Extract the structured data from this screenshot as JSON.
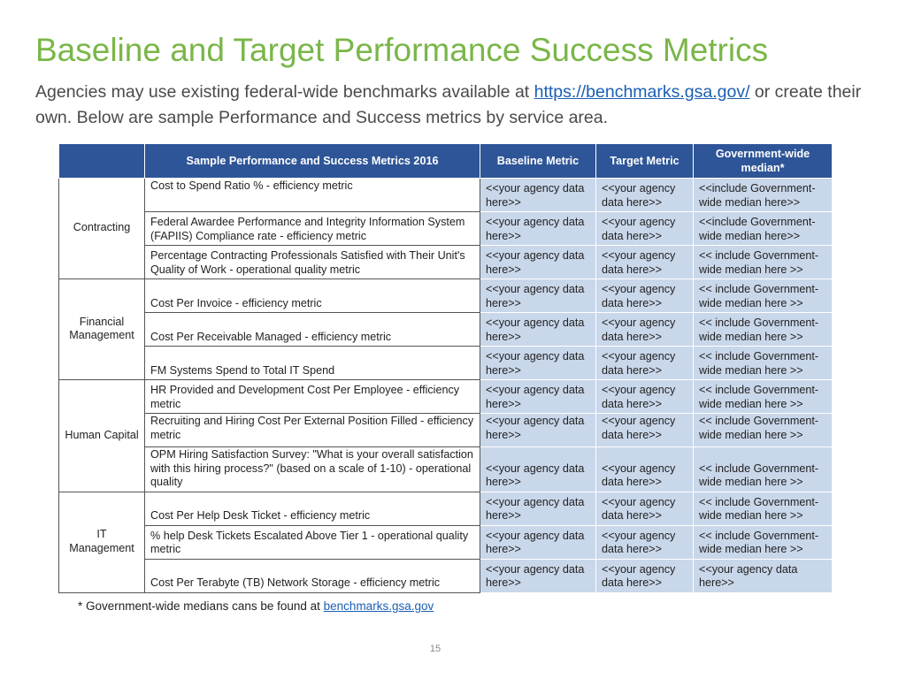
{
  "title": "Baseline and Target Performance Success Metrics",
  "subtitle": {
    "before": "Agencies may use existing federal-wide benchmarks available at ",
    "link": "https://benchmarks.gsa.gov/",
    "after": " or create their own. Below are sample Performance and Success metrics by service area."
  },
  "table": {
    "headers": [
      "",
      "Sample Performance and Success Metrics 2016",
      "Baseline Metric",
      "Target Metric",
      "Government-wide median*"
    ],
    "rows": [
      {
        "area": "Contracting",
        "span": 3,
        "metric": "Cost to Spend Ratio % - efficiency metric",
        "metric_top": true,
        "baseline": "<<your agency data here>>",
        "target": "<<your agency data here>>",
        "median": "<<include Government-wide median  here>>"
      },
      {
        "metric": "Federal Awardee Performance and Integrity Information System (FAPIIS) Compliance rate - efficiency metric",
        "baseline": "<<your agency data here>>",
        "target": "<<your agency data here>>",
        "median": "<<include Government-wide median here>>"
      },
      {
        "metric": "Percentage Contracting Professionals Satisfied with Their Unit's Quality of Work - operational quality metric",
        "baseline": "<<your agency data here>>",
        "target": "<<your agency data here>>",
        "median": "<< include Government-wide median here >>"
      },
      {
        "area": "Financial Management",
        "span": 3,
        "metric": "Cost Per Invoice - efficiency metric",
        "baseline": "<<your agency data here>>",
        "target": "<<your agency data here>>",
        "median": "<< include Government-wide median here >>"
      },
      {
        "metric": "Cost Per Receivable Managed - efficiency metric",
        "baseline": "<<your agency data here>>",
        "target": "<<your agency data here>>",
        "median": "<< include Government-wide median here >>"
      },
      {
        "metric": "FM Systems Spend to Total IT Spend",
        "baseline": "<<your agency data here>>",
        "target": "<<your agency data here>>",
        "median": "<< include Government-wide median here >>"
      },
      {
        "area": "Human Capital",
        "span": 3,
        "metric": "HR Provided and Development Cost Per Employee - efficiency metric",
        "baseline": "<<your agency data here>>",
        "target": "<<your agency data here>>",
        "median": "<< include Government-wide median here >>"
      },
      {
        "metric": "Recruiting and Hiring Cost Per External Position Filled - efficiency metric",
        "metric_top": true,
        "baseline": "<<your agency data here>>",
        "target": "<<your agency data here>>",
        "median": "<< include Government-wide median here >>",
        "values_top": true
      },
      {
        "metric": "OPM Hiring Satisfaction Survey: \"What is your overall satisfaction with this hiring process?\" (based on a scale of 1-10) - operational quality",
        "tall": true,
        "baseline": "<<your agency data here>>",
        "target": "<<your agency data here>>",
        "median": "<< include Government-wide median here >>"
      },
      {
        "area": "IT Management",
        "span": 3,
        "metric": "Cost Per Help Desk Ticket - efficiency metric",
        "baseline": "<<your agency data here>>",
        "target": "<<your agency data here>>",
        "median": "<< include Government-wide median here >>"
      },
      {
        "metric": "% help Desk Tickets Escalated Above Tier 1 - operational quality metric",
        "baseline": "<<your agency data here>>",
        "target": "<<your agency data here>>",
        "median": "<< include Government-wide median here >>"
      },
      {
        "metric": "Cost Per Terabyte (TB) Network Storage - efficiency metric",
        "baseline": "<<your agency data here>>",
        "target": "<<your agency data here>>",
        "median": "<<your agency data here>>"
      }
    ]
  },
  "footnote": {
    "text": "* Government-wide medians cans be found at ",
    "link": "benchmarks.gsa.gov"
  },
  "page_number": "15",
  "colors": {
    "title": "#7ab648",
    "header_bg": "#2e5597",
    "cell_bg": "#c9d7ea",
    "link": "#1a5fb4"
  }
}
